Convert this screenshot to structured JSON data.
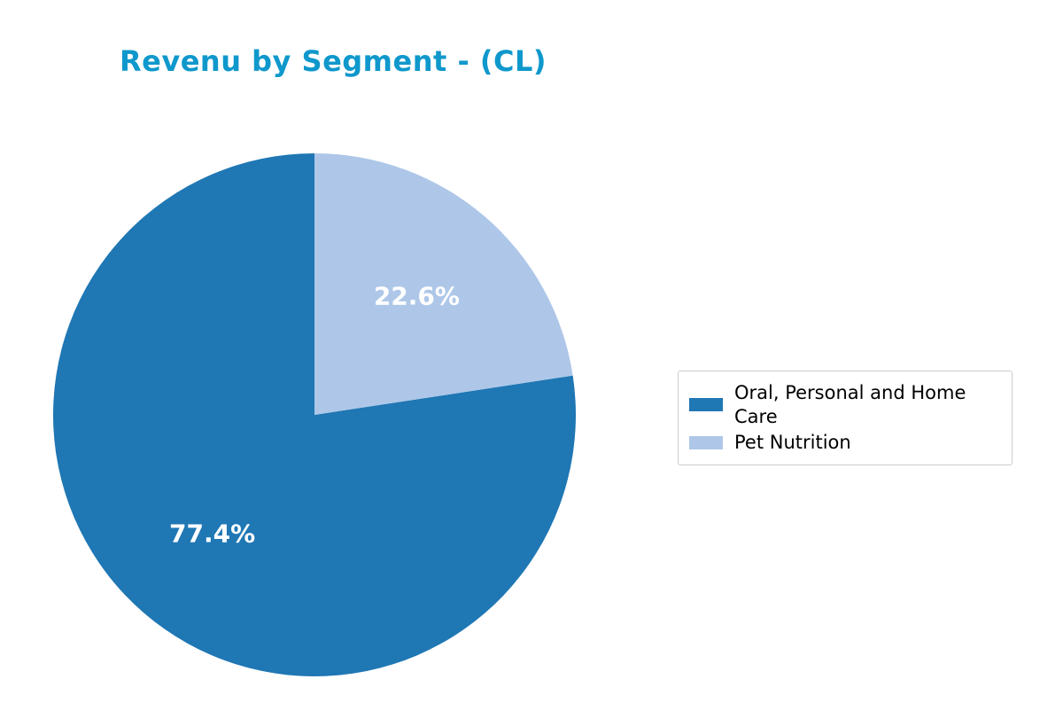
{
  "title": {
    "text": "Revenu by Segment - (CL)",
    "color": "#0f98cc"
  },
  "chart_data": {
    "type": "pie",
    "title": "Revenu by Segment - (CL)",
    "start_angle": 90,
    "counterclockwise": true,
    "pctdistance": 0.6,
    "background": "#ffffff",
    "slices": [
      {
        "label": "Oral, Personal and Home Care",
        "value": 77.4,
        "pct_label": "77.4%",
        "color": "#1f77b4",
        "pct_label_color": "#ffffff"
      },
      {
        "label": "Pet Nutrition",
        "value": 22.6,
        "pct_label": "22.6%",
        "color": "#aec7e8",
        "pct_label_color": "#ffffff"
      }
    ],
    "legend": {
      "position": "center right",
      "border_color": "#cccccc",
      "background": "#ffffff"
    }
  }
}
